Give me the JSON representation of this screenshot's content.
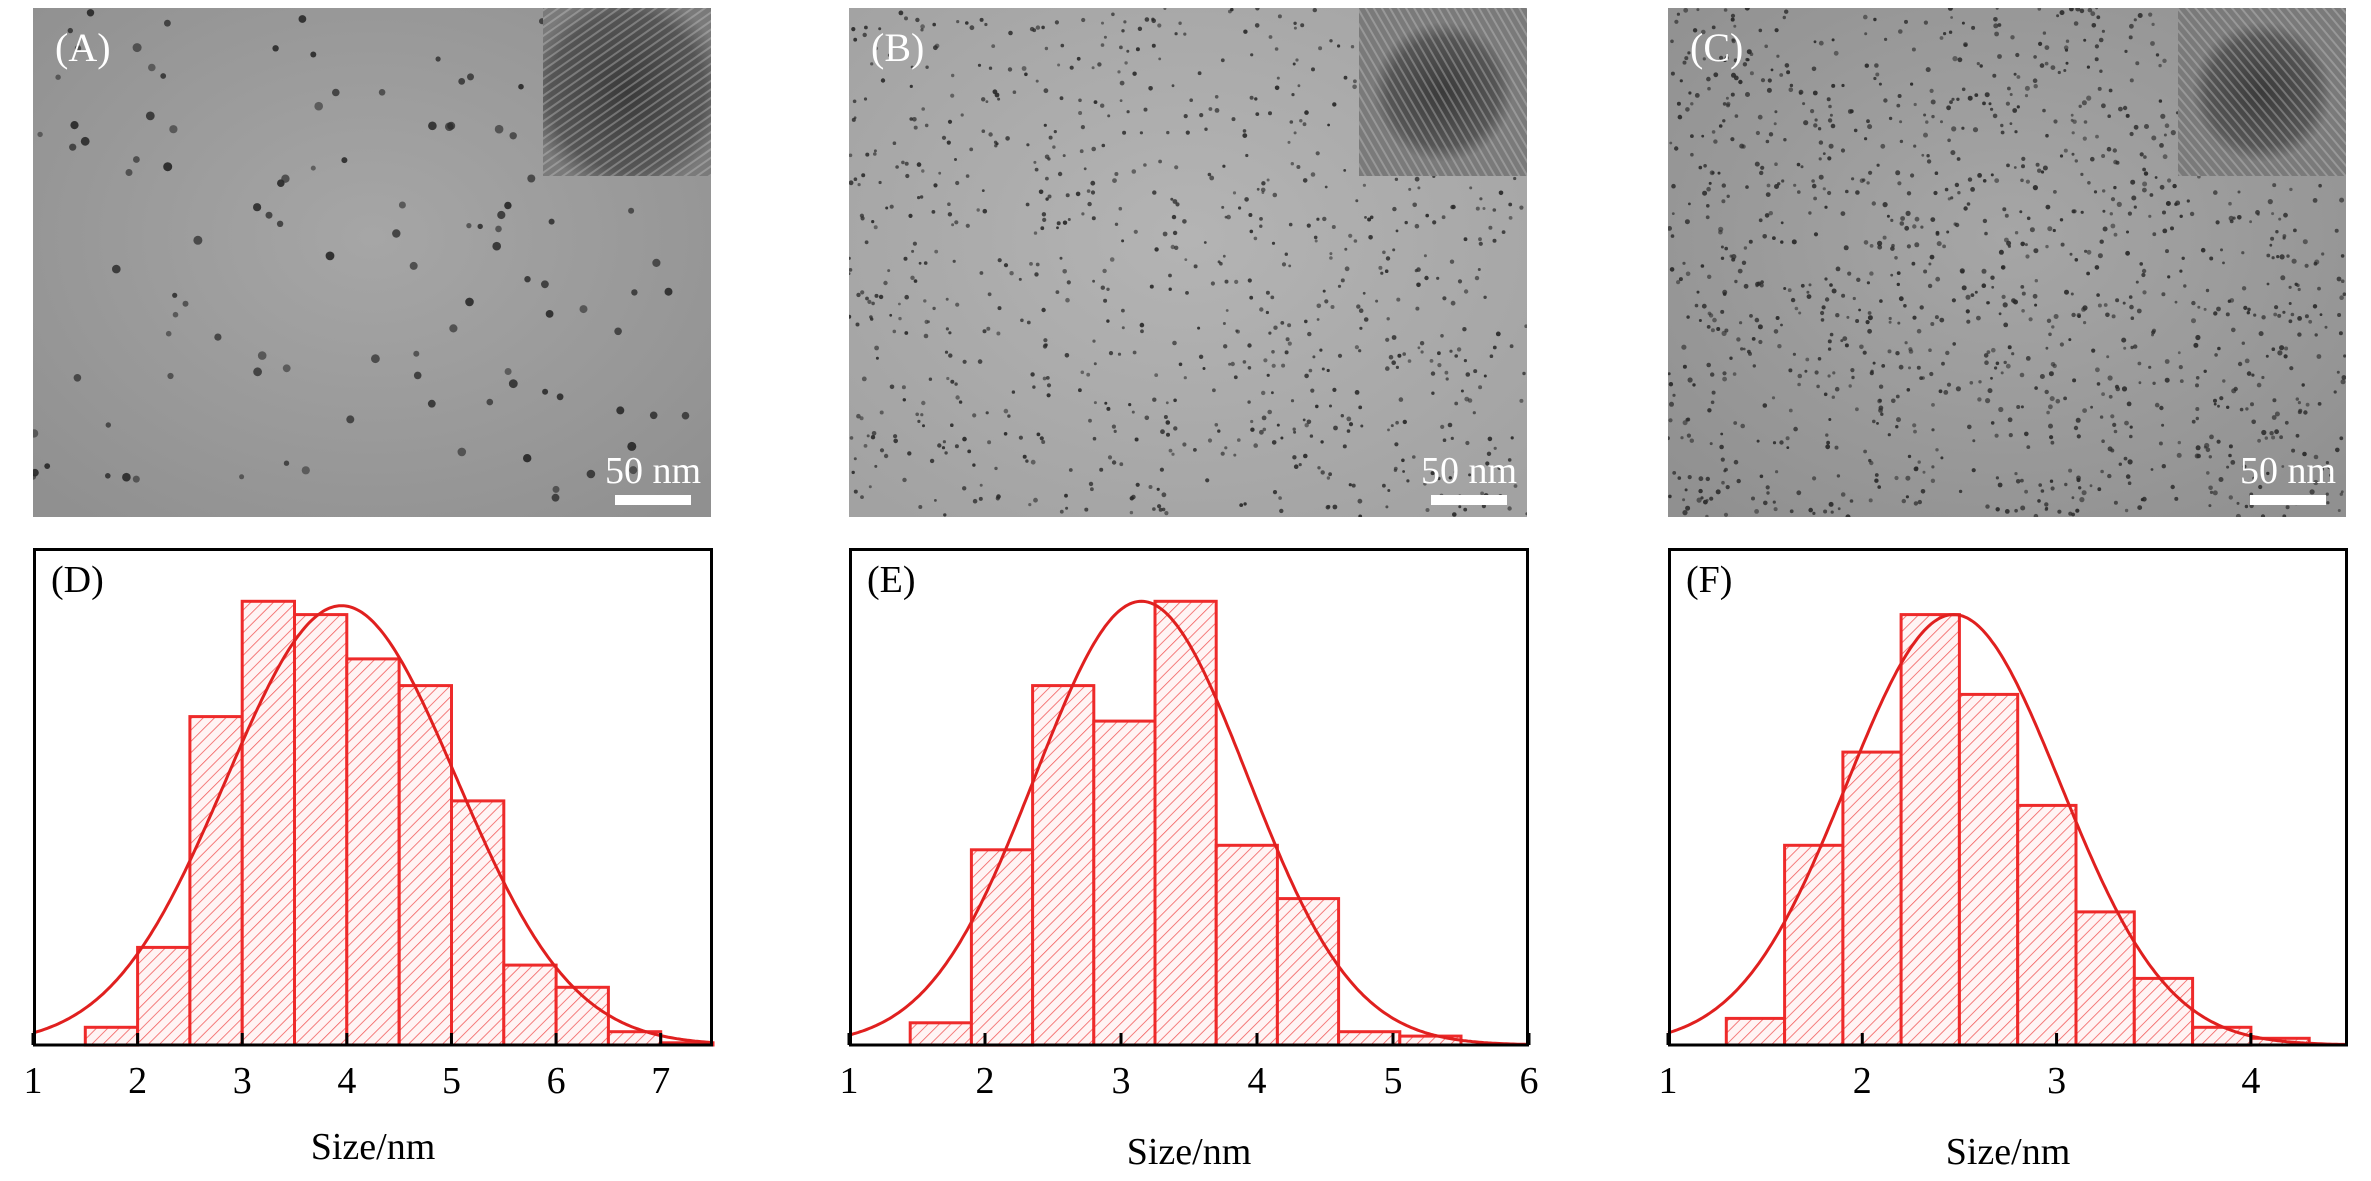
{
  "tem_panels": [
    {
      "label": "(A)",
      "scale_bar": "50 nm"
    },
    {
      "label": "(B)",
      "scale_bar": "50 nm"
    },
    {
      "label": "(C)",
      "scale_bar": "50 nm"
    }
  ],
  "colors": {
    "bar": "#ee2a2a",
    "curve": "#e0201f",
    "tem_bg": "#9d9d9d"
  },
  "chart_data": [
    {
      "type": "bar",
      "label": "(D)",
      "xlabel": "Size/nm",
      "ylabel": "",
      "xlim": [
        1,
        7.5
      ],
      "ylim": [
        0,
        1.12
      ],
      "xticks": [
        "1",
        "2",
        "3",
        "4",
        "5",
        "6",
        "7"
      ],
      "bin_width": 0.5,
      "bin_starts": [
        1.5,
        2.0,
        2.5,
        3.0,
        3.5,
        4.0,
        4.5,
        5.0,
        5.5,
        6.0,
        6.5,
        7.0
      ],
      "values": [
        0.04,
        0.22,
        0.74,
        1.0,
        0.97,
        0.87,
        0.81,
        0.55,
        0.18,
        0.13,
        0.03,
        0.005
      ],
      "fit": {
        "type": "gaussian",
        "mean": 3.95,
        "sigma": 1.1,
        "peak": 0.99
      }
    },
    {
      "type": "bar",
      "label": "(E)",
      "xlabel": "Size/nm",
      "ylabel": "",
      "xlim": [
        1,
        6
      ],
      "ylim": [
        0,
        1.12
      ],
      "xticks": [
        "1",
        "2",
        "3",
        "4",
        "5",
        "6"
      ],
      "bin_width": 0.45,
      "bin_starts": [
        1.45,
        1.9,
        2.35,
        2.8,
        3.25,
        3.7,
        4.15,
        4.6,
        5.05
      ],
      "values": [
        0.05,
        0.44,
        0.81,
        0.73,
        1.0,
        0.45,
        0.33,
        0.03,
        0.02
      ],
      "fit": {
        "type": "gaussian",
        "mean": 3.15,
        "sigma": 0.78,
        "peak": 1.0
      }
    },
    {
      "type": "bar",
      "label": "(F)",
      "xlabel": "Size/nm",
      "ylabel": "",
      "xlim": [
        1,
        4.5
      ],
      "ylim": [
        0,
        1.12
      ],
      "xticks": [
        "1",
        "2",
        "3",
        "4"
      ],
      "bin_width": 0.3,
      "bin_starts": [
        1.3,
        1.6,
        1.9,
        2.2,
        2.5,
        2.8,
        3.1,
        3.4,
        3.7,
        4.0
      ],
      "values": [
        0.06,
        0.45,
        0.66,
        0.97,
        0.79,
        0.54,
        0.3,
        0.15,
        0.04,
        0.015
      ],
      "fit": {
        "type": "gaussian",
        "mean": 2.47,
        "sigma": 0.55,
        "peak": 0.97
      }
    }
  ]
}
